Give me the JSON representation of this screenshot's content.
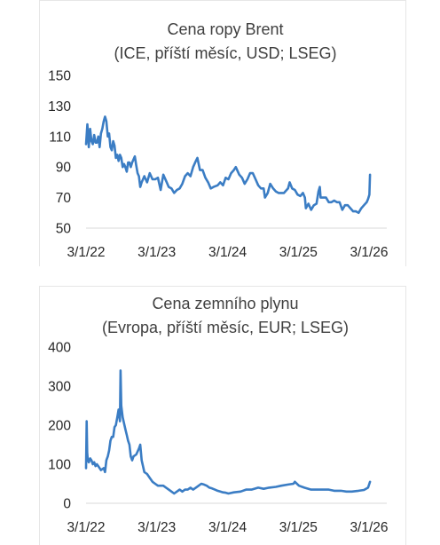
{
  "chart_data": [
    {
      "type": "line",
      "title": "Cena ropy Brent",
      "subtitle": "(ICE, příští měsíc, USD; LSEG)",
      "xlabel": "",
      "ylabel": "",
      "x_tick_labels": [
        "3/1/22",
        "3/1/23",
        "3/1/24",
        "3/1/25",
        "3/1/26"
      ],
      "y_tick_labels": [
        "50",
        "70",
        "90",
        "110",
        "130",
        "150"
      ],
      "ylim": [
        50,
        150
      ],
      "grid": false,
      "legend": "none",
      "color": "#3b7dc4",
      "series": [
        {
          "x": [
            "2022-03-01",
            "2022-03-08",
            "2022-03-15",
            "2022-03-22",
            "2022-03-29",
            "2022-04-05",
            "2022-04-12",
            "2022-04-19",
            "2022-04-26",
            "2022-05-03",
            "2022-05-10",
            "2022-05-17",
            "2022-05-24",
            "2022-05-31",
            "2022-06-07",
            "2022-06-14",
            "2022-06-21",
            "2022-06-28",
            "2022-07-05",
            "2022-07-12",
            "2022-07-19",
            "2022-07-26",
            "2022-08-02",
            "2022-08-09",
            "2022-08-16",
            "2022-08-23",
            "2022-08-30",
            "2022-09-06",
            "2022-09-13",
            "2022-09-20",
            "2022-09-27",
            "2022-10-04",
            "2022-10-11",
            "2022-10-18",
            "2022-10-25",
            "2022-11-01",
            "2022-11-08",
            "2022-11-15",
            "2022-11-22",
            "2022-11-29",
            "2022-12-06",
            "2022-12-13",
            "2022-12-20",
            "2022-12-27",
            "2023-01-10",
            "2023-01-24",
            "2023-02-07",
            "2023-02-21",
            "2023-03-07",
            "2023-03-21",
            "2023-04-04",
            "2023-04-18",
            "2023-05-02",
            "2023-05-16",
            "2023-05-30",
            "2023-06-13",
            "2023-06-27",
            "2023-07-11",
            "2023-07-25",
            "2023-08-08",
            "2023-08-22",
            "2023-09-05",
            "2023-09-19",
            "2023-09-27",
            "2023-10-10",
            "2023-10-24",
            "2023-11-07",
            "2023-11-21",
            "2023-12-05",
            "2023-12-19",
            "2024-01-09",
            "2024-01-23",
            "2024-02-06",
            "2024-02-20",
            "2024-03-05",
            "2024-03-19",
            "2024-04-02",
            "2024-04-12",
            "2024-04-30",
            "2024-05-14",
            "2024-05-28",
            "2024-06-11",
            "2024-06-25",
            "2024-07-09",
            "2024-07-23",
            "2024-08-06",
            "2024-08-20",
            "2024-09-03",
            "2024-09-10",
            "2024-09-24",
            "2024-10-07",
            "2024-10-22",
            "2024-11-05",
            "2024-11-19",
            "2024-12-03",
            "2024-12-17",
            "2025-01-07",
            "2025-01-15",
            "2025-01-28",
            "2025-02-11",
            "2025-02-25",
            "2025-03-11",
            "2025-03-25",
            "2025-04-04",
            "2025-04-09",
            "2025-04-22",
            "2025-05-06",
            "2025-05-20",
            "2025-06-03",
            "2025-06-13",
            "2025-06-20",
            "2025-06-24",
            "2025-07-08",
            "2025-07-22",
            "2025-08-05",
            "2025-08-19",
            "2025-09-02",
            "2025-09-16",
            "2025-09-30",
            "2025-10-14",
            "2025-10-28",
            "2025-11-11",
            "2025-11-25",
            "2025-12-09",
            "2025-12-23",
            "2026-01-06",
            "2026-01-20",
            "2026-02-03",
            "2026-02-17",
            "2026-02-24",
            "2026-03-03",
            "2026-03-06"
          ],
          "values": [
            105,
            118,
            103,
            115,
            107,
            105,
            111,
            106,
            106,
            110,
            103,
            112,
            115,
            120,
            123,
            120,
            110,
            112,
            103,
            101,
            107,
            104,
            96,
            98,
            94,
            98,
            96,
            90,
            92,
            90,
            87,
            93,
            93,
            90,
            93,
            95,
            97,
            91,
            86,
            84,
            77,
            80,
            82,
            84,
            80,
            86,
            82,
            82,
            83,
            75,
            85,
            81,
            77,
            76,
            73,
            75,
            76,
            79,
            84,
            86,
            84,
            90,
            94,
            96,
            88,
            88,
            83,
            80,
            76,
            77,
            78,
            80,
            78,
            83,
            82,
            86,
            88,
            90,
            85,
            83,
            79,
            82,
            86,
            86,
            82,
            78,
            76,
            76,
            70,
            73,
            79,
            76,
            74,
            73,
            73,
            73,
            76,
            80,
            76,
            75,
            72,
            71,
            73,
            70,
            63,
            66,
            62,
            65,
            66,
            74,
            77,
            70,
            70,
            70,
            67,
            67,
            68,
            67,
            67,
            62,
            65,
            65,
            63,
            61,
            61,
            60,
            63,
            65,
            67,
            69,
            72,
            85
          ]
        }
      ]
    },
    {
      "type": "line",
      "title": "Cena zemního plynu",
      "subtitle": "(Evropa, příští měsíc, EUR; LSEG)",
      "xlabel": "",
      "ylabel": "",
      "x_tick_labels": [
        "3/1/22",
        "3/1/23",
        "3/1/24",
        "3/1/25",
        "3/1/26"
      ],
      "y_tick_labels": [
        "0",
        "100",
        "200",
        "300",
        "400"
      ],
      "ylim": [
        0,
        400
      ],
      "grid": false,
      "legend": "none",
      "color": "#3b7dc4",
      "series": [
        {
          "x": [
            "2022-03-01",
            "2022-03-04",
            "2022-03-07",
            "2022-03-10",
            "2022-03-15",
            "2022-03-22",
            "2022-03-29",
            "2022-04-05",
            "2022-04-12",
            "2022-04-19",
            "2022-04-26",
            "2022-05-03",
            "2022-05-17",
            "2022-05-31",
            "2022-06-07",
            "2022-06-14",
            "2022-06-21",
            "2022-06-28",
            "2022-07-05",
            "2022-07-12",
            "2022-07-19",
            "2022-07-26",
            "2022-08-02",
            "2022-08-09",
            "2022-08-16",
            "2022-08-23",
            "2022-08-26",
            "2022-08-30",
            "2022-09-06",
            "2022-09-13",
            "2022-09-20",
            "2022-09-27",
            "2022-10-04",
            "2022-10-11",
            "2022-10-18",
            "2022-10-25",
            "2022-11-01",
            "2022-11-15",
            "2022-11-29",
            "2022-12-06",
            "2022-12-13",
            "2022-12-20",
            "2022-12-27",
            "2023-01-10",
            "2023-01-24",
            "2023-02-07",
            "2023-02-21",
            "2023-03-07",
            "2023-03-21",
            "2023-04-04",
            "2023-04-18",
            "2023-05-02",
            "2023-05-16",
            "2023-05-30",
            "2023-06-13",
            "2023-06-27",
            "2023-07-11",
            "2023-07-25",
            "2023-08-08",
            "2023-08-22",
            "2023-09-05",
            "2023-09-19",
            "2023-10-03",
            "2023-10-17",
            "2023-10-31",
            "2023-11-14",
            "2023-11-28",
            "2023-12-12",
            "2023-12-26",
            "2024-01-09",
            "2024-01-23",
            "2024-02-06",
            "2024-02-20",
            "2024-03-05",
            "2024-04-02",
            "2024-05-07",
            "2024-06-04",
            "2024-07-02",
            "2024-08-06",
            "2024-09-03",
            "2024-10-01",
            "2024-11-05",
            "2024-12-03",
            "2025-01-07",
            "2025-02-04",
            "2025-02-11",
            "2025-03-04",
            "2025-04-01",
            "2025-05-06",
            "2025-06-03",
            "2025-07-01",
            "2025-08-05",
            "2025-09-02",
            "2025-10-07",
            "2025-11-04",
            "2025-12-02",
            "2026-01-06",
            "2026-02-03",
            "2026-02-24",
            "2026-03-06"
          ],
          "values": [
            90,
            210,
            130,
            110,
            105,
            115,
            110,
            100,
            105,
            95,
            100,
            95,
            85,
            90,
            80,
            110,
            120,
            135,
            160,
            170,
            170,
            195,
            200,
            220,
            240,
            210,
            340,
            250,
            220,
            205,
            190,
            175,
            160,
            150,
            120,
            110,
            120,
            125,
            140,
            150,
            110,
            95,
            80,
            75,
            65,
            55,
            50,
            45,
            45,
            45,
            40,
            35,
            30,
            25,
            30,
            35,
            30,
            35,
            35,
            40,
            35,
            40,
            45,
            50,
            48,
            45,
            40,
            38,
            35,
            32,
            30,
            28,
            27,
            25,
            28,
            30,
            35,
            35,
            40,
            37,
            40,
            42,
            45,
            48,
            50,
            55,
            45,
            40,
            35,
            35,
            35,
            35,
            32,
            32,
            30,
            30,
            32,
            34,
            40,
            55
          ]
        }
      ]
    }
  ]
}
